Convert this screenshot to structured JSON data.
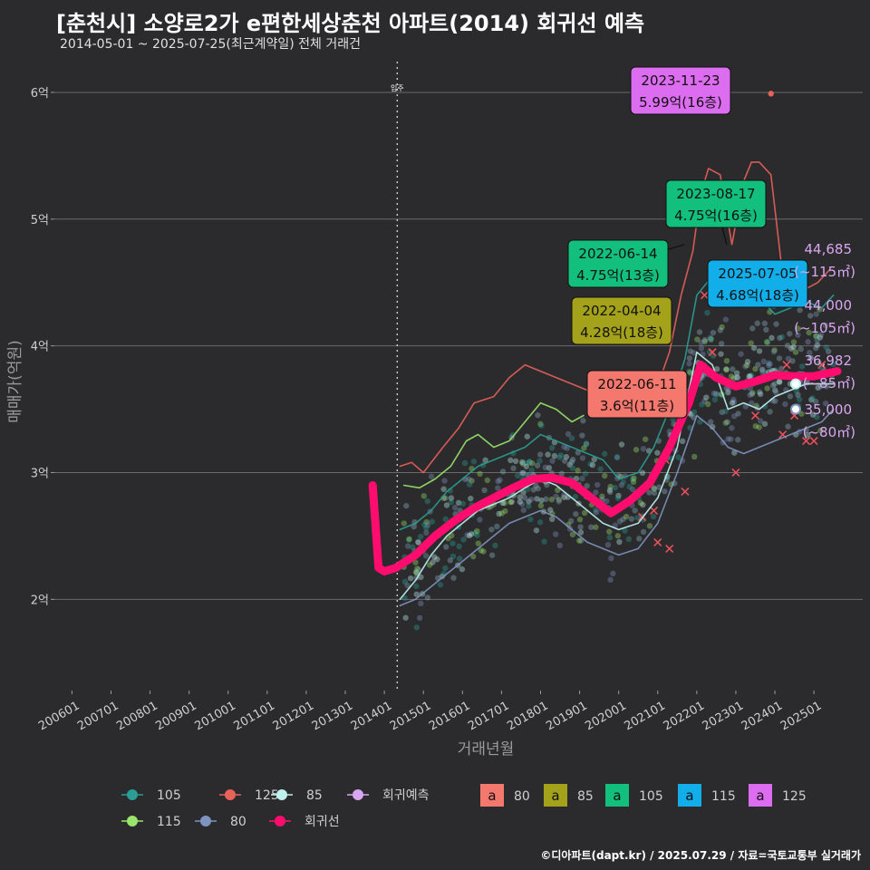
{
  "title": "[춘천시] 소양로2가 e편한세상춘천 아파트(2014) 회귀선 예측",
  "subtitle": "2014-05-01 ~ 2025-07-25(최근계약일) 전체 거래건",
  "credit": "©디아파트(dapt.kr) / 2025.07.29 / 자료=국토교통부 실거래가",
  "colors": {
    "background": "#2b2b2d",
    "grid": "#6a6a6a",
    "s105": "#2a9d94",
    "s125": "#e8625a",
    "s85": "#bff2ee",
    "s115": "#9be56c",
    "s80": "#7e93c0",
    "regression": "#ff0d6e",
    "prediction": "#d9a6f0",
    "box80": "#f4786e",
    "box85": "#a3a21a",
    "box105": "#13bf7d",
    "box115": "#12aeea",
    "box125": "#dc6cf0"
  },
  "chart_data": {
    "type": "scatter",
    "xlabel": "거래년월",
    "ylabel": "매매가(억원)",
    "x_ticks": [
      "200601",
      "200701",
      "200801",
      "200901",
      "201001",
      "201101",
      "201201",
      "201301",
      "201401",
      "201501",
      "201601",
      "201701",
      "201801",
      "201901",
      "202001",
      "202101",
      "202201",
      "202301",
      "202401",
      "202501"
    ],
    "y_ticks": [
      {
        "value": 2,
        "label": "2억"
      },
      {
        "value": 3,
        "label": "3억"
      },
      {
        "value": 4,
        "label": "4억"
      },
      {
        "value": 5,
        "label": "5억"
      },
      {
        "value": 6,
        "label": "6억"
      }
    ],
    "xlim": [
      2005.55,
      2026.25
    ],
    "ylim": [
      1.28,
      6.3
    ],
    "grid": true,
    "vline": {
      "x": 2014.33,
      "label": "입주"
    },
    "legend_top": [
      {
        "name": "105",
        "color": "#2a9d94"
      },
      {
        "name": "125",
        "color": "#e8625a"
      },
      {
        "name": "85",
        "color": "#bff2ee"
      },
      {
        "name": "회귀예측",
        "color": "#d9a6f0"
      }
    ],
    "legend_bottom": [
      {
        "name": "115",
        "color": "#9be56c"
      },
      {
        "name": "80",
        "color": "#7e93c0"
      },
      {
        "name": "회귀선",
        "color": "#ff0d6e"
      }
    ],
    "legend_boxes": [
      {
        "glyph": "a",
        "name": "80",
        "color": "#f4786e"
      },
      {
        "glyph": "a",
        "name": "85",
        "color": "#a3a21a"
      },
      {
        "glyph": "a",
        "name": "105",
        "color": "#13bf7d"
      },
      {
        "glyph": "a",
        "name": "115",
        "color": "#12aeea"
      },
      {
        "glyph": "a",
        "name": "125",
        "color": "#dc6cf0"
      }
    ],
    "series": [
      {
        "name": "125",
        "color": "#e8625a",
        "x": [
          2014.4,
          2014.7,
          2015.0,
          2015.5,
          2015.9,
          2016.3,
          2016.8,
          2017.2,
          2017.6,
          2018.0,
          2018.4,
          2018.8,
          2019.2,
          2019.6,
          2020.0,
          2020.5,
          2020.9,
          2021.3,
          2021.6,
          2021.9,
          2022.1,
          2022.3,
          2022.6,
          2022.9,
          2023.2,
          2023.4,
          2023.6,
          2023.9,
          2024.2,
          2024.5,
          2024.8,
          2025.1,
          2025.4
        ],
        "y": [
          3.05,
          3.08,
          3.0,
          3.2,
          3.35,
          3.55,
          3.6,
          3.75,
          3.85,
          3.8,
          3.75,
          3.7,
          3.65,
          3.6,
          3.55,
          3.5,
          3.6,
          3.95,
          4.4,
          4.75,
          5.2,
          5.4,
          5.35,
          4.8,
          5.3,
          5.45,
          5.45,
          5.35,
          4.55,
          4.5,
          4.45,
          4.5,
          4.6
        ]
      },
      {
        "name": "115",
        "color": "#9be56c",
        "x": [
          2014.5,
          2014.9,
          2015.3,
          2015.7,
          2016.1,
          2016.4,
          2016.8,
          2017.2,
          2017.6,
          2018.0,
          2018.4,
          2018.8,
          2019.1
        ],
        "y": [
          2.9,
          2.88,
          2.95,
          3.05,
          3.25,
          3.3,
          3.2,
          3.25,
          3.4,
          3.55,
          3.5,
          3.4,
          3.45
        ]
      },
      {
        "name": "105",
        "color": "#2a9d94",
        "x": [
          2014.4,
          2014.8,
          2015.2,
          2015.6,
          2016.0,
          2016.4,
          2016.8,
          2017.2,
          2017.6,
          2018.0,
          2018.4,
          2018.8,
          2019.2,
          2019.6,
          2020.0,
          2020.5,
          2020.9,
          2021.3,
          2021.7,
          2022.0,
          2022.4,
          2022.7,
          2023.0,
          2023.3,
          2023.7,
          2024.0,
          2024.4,
          2024.8,
          2025.2,
          2025.5
        ],
        "y": [
          2.55,
          2.6,
          2.7,
          2.85,
          2.95,
          3.05,
          3.1,
          3.15,
          3.2,
          3.3,
          3.25,
          3.2,
          3.15,
          3.1,
          2.95,
          3.0,
          3.2,
          3.5,
          3.9,
          4.4,
          4.55,
          4.6,
          4.45,
          4.55,
          4.35,
          4.25,
          4.3,
          4.35,
          4.3,
          4.4
        ]
      },
      {
        "name": "85",
        "color": "#bff2ee",
        "x": [
          2014.4,
          2014.8,
          2015.2,
          2015.6,
          2016.0,
          2016.4,
          2016.8,
          2017.2,
          2017.6,
          2018.0,
          2018.4,
          2018.8,
          2019.2,
          2019.6,
          2020.0,
          2020.5,
          2021.0,
          2021.5,
          2022.0,
          2022.4,
          2022.8,
          2023.2,
          2023.6,
          2024.0,
          2024.4,
          2024.8,
          2025.2,
          2025.5
        ],
        "y": [
          2.0,
          2.15,
          2.35,
          2.5,
          2.6,
          2.7,
          2.75,
          2.8,
          2.88,
          2.95,
          2.9,
          2.8,
          2.7,
          2.6,
          2.55,
          2.6,
          2.8,
          3.2,
          3.95,
          3.85,
          3.5,
          3.55,
          3.5,
          3.6,
          3.65,
          3.7,
          3.7,
          3.7
        ]
      },
      {
        "name": "80",
        "color": "#7e93c0",
        "x": [
          2014.4,
          2014.8,
          2015.2,
          2015.6,
          2016.0,
          2016.4,
          2016.8,
          2017.2,
          2017.6,
          2018.0,
          2018.4,
          2018.8,
          2019.2,
          2019.6,
          2020.0,
          2020.5,
          2021.0,
          2021.5,
          2022.0,
          2022.4,
          2022.8,
          2023.2,
          2023.6,
          2024.0,
          2024.4,
          2024.8,
          2025.2,
          2025.5
        ],
        "y": [
          1.95,
          2.0,
          2.1,
          2.2,
          2.3,
          2.4,
          2.5,
          2.6,
          2.65,
          2.7,
          2.65,
          2.55,
          2.45,
          2.4,
          2.35,
          2.4,
          2.6,
          3.0,
          3.45,
          3.35,
          3.2,
          3.15,
          3.2,
          3.25,
          3.3,
          3.35,
          3.4,
          3.5
        ]
      },
      {
        "name": "회귀선",
        "color": "#ff0d6e",
        "x": [
          2013.7,
          2013.85,
          2014.0,
          2014.3,
          2014.8,
          2015.3,
          2015.8,
          2016.3,
          2016.8,
          2017.3,
          2017.8,
          2018.3,
          2018.8,
          2019.3,
          2019.8,
          2020.3,
          2020.8,
          2021.3,
          2021.8,
          2022.1,
          2022.5,
          2023.0,
          2023.5,
          2024.0,
          2024.5,
          2025.0,
          2025.6
        ],
        "y": [
          2.9,
          2.25,
          2.22,
          2.25,
          2.35,
          2.5,
          2.62,
          2.72,
          2.8,
          2.88,
          2.95,
          2.96,
          2.92,
          2.8,
          2.68,
          2.78,
          2.92,
          3.2,
          3.55,
          3.85,
          3.75,
          3.68,
          3.72,
          3.77,
          3.76,
          3.76,
          3.8
        ]
      }
    ],
    "annotations": [
      {
        "date": "2023-11-23",
        "value": "5.99억(16층)",
        "area": "125",
        "x": 2023.9,
        "y": 5.99
      },
      {
        "date": "2023-08-17",
        "value": "4.75억(16층)",
        "area": "105",
        "x": 2023.63,
        "y": 4.75
      },
      {
        "date": "2022-06-14",
        "value": "4.75억(13층)",
        "area": "105",
        "x": 2022.45,
        "y": 4.75
      },
      {
        "date": "2025-07-05",
        "value": "4.68억(18층)",
        "area": "115",
        "x": 2025.5,
        "y": 4.68
      },
      {
        "date": "2022-04-04",
        "value": "4.28억(18층)",
        "area": "85",
        "x": 2022.26,
        "y": 4.28
      },
      {
        "date": "2022-06-11",
        "value": "3.6억(11층)",
        "area": "80",
        "x": 2022.44,
        "y": 3.6
      }
    ],
    "predictions": [
      {
        "value": "44,685",
        "range": "(~115㎡)",
        "y": 4.47
      },
      {
        "value": "44,000",
        "range": "(~105㎡)",
        "y": 4.4
      },
      {
        "value": "36,982",
        "range": "(~85㎡)",
        "y": 3.7
      },
      {
        "value": "35,000",
        "range": "(~80㎡)",
        "y": 3.5
      }
    ]
  }
}
